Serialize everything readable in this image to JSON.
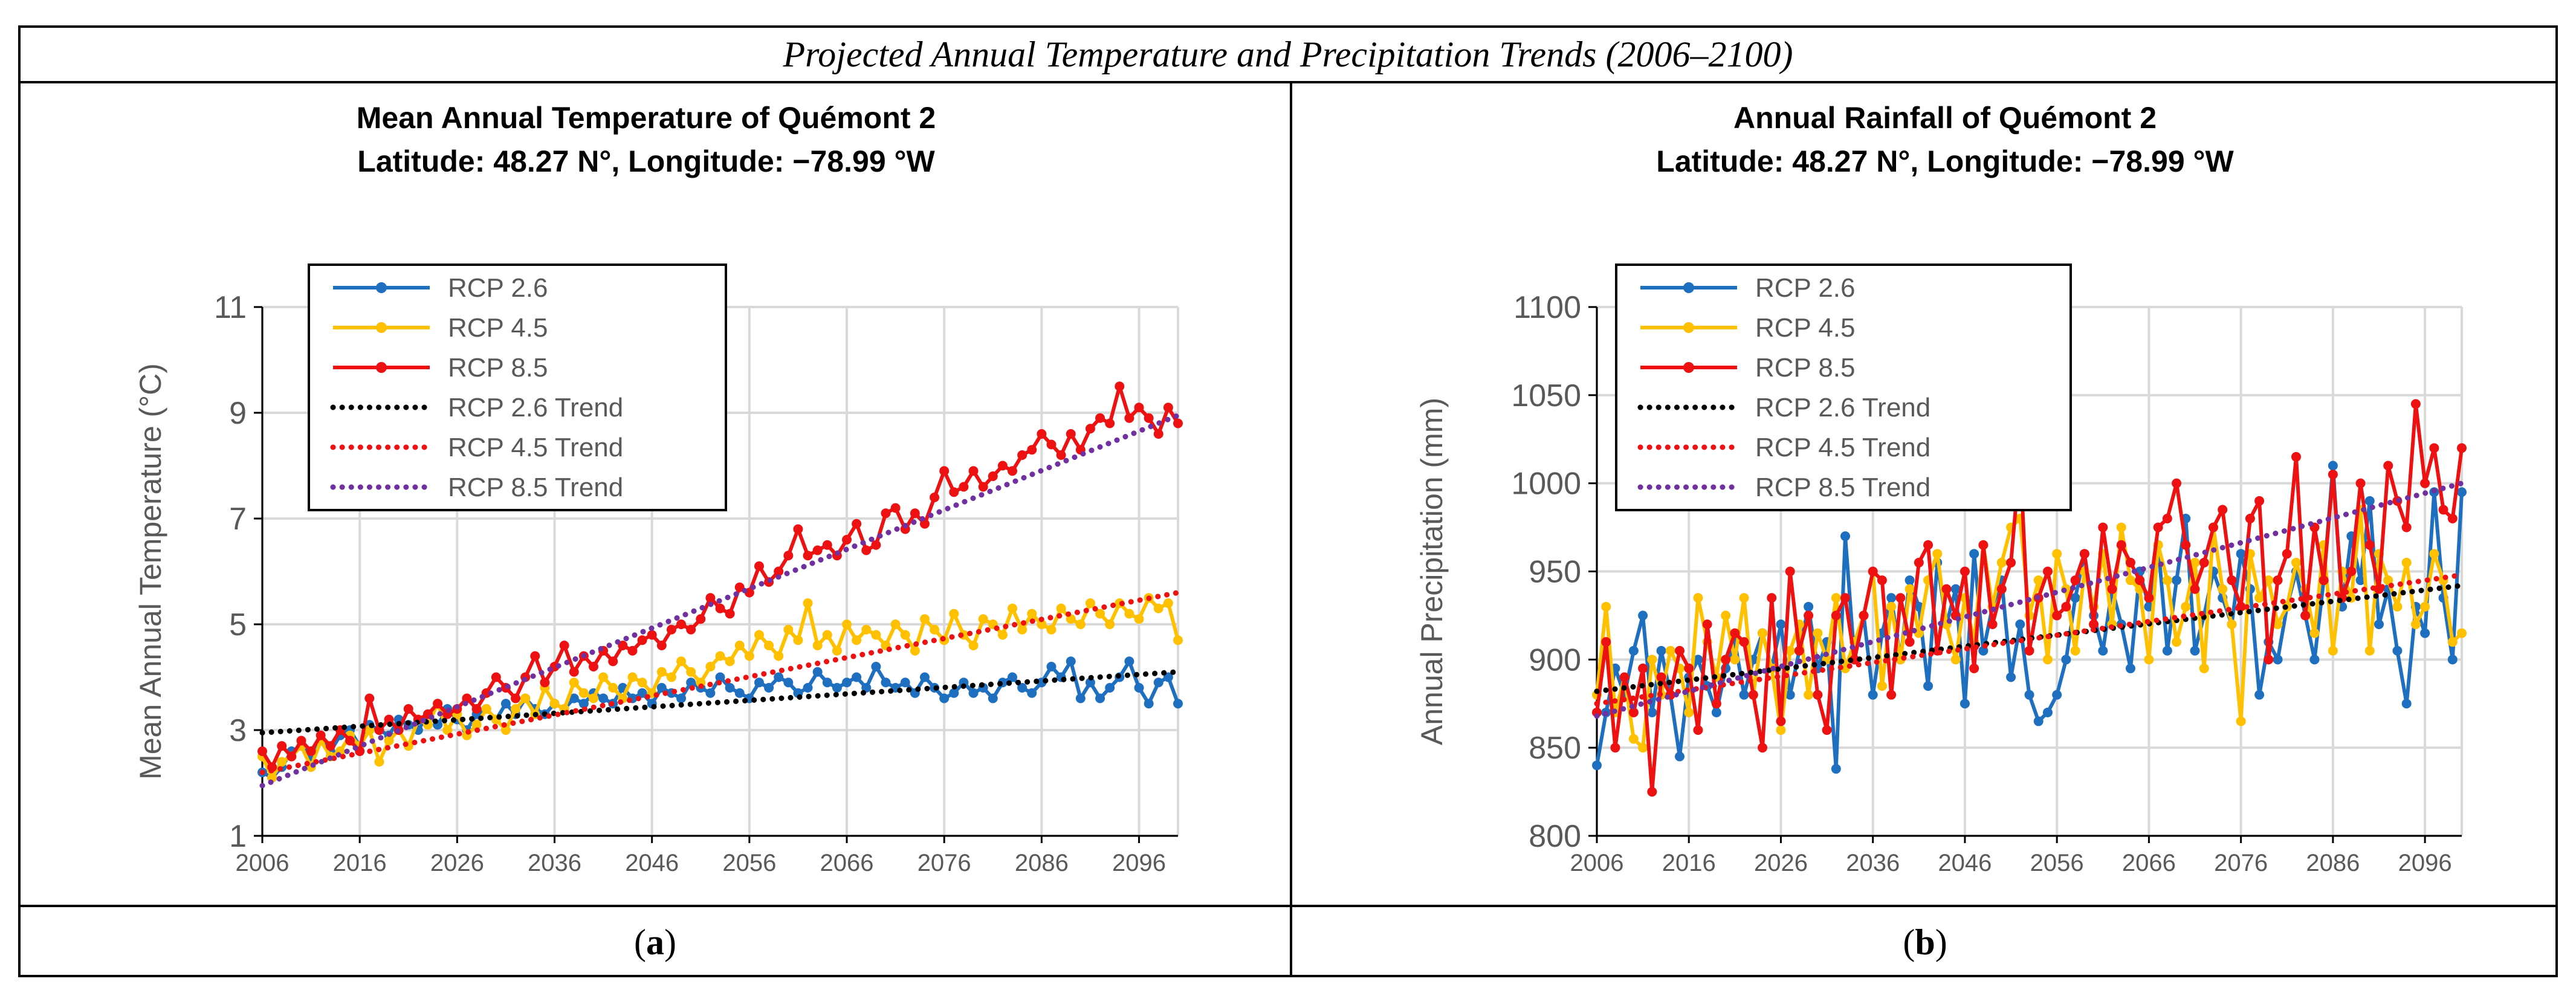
{
  "figure_title": "Projected Annual Temperature and Precipitation Trends (2006–2100)",
  "captions": [
    {
      "open": "(",
      "letter": "a",
      "close": ")"
    },
    {
      "open": "(",
      "letter": "b",
      "close": ")"
    }
  ],
  "colors": {
    "rcp26": "#1f6fc0",
    "rcp45": "#ffc000",
    "rcp85": "#ee1111",
    "trend26": "#000000",
    "trend45": "#ee1111",
    "trend85": "#7030a0"
  },
  "chart_data": [
    {
      "type": "line",
      "title": "Mean Annual Temperature of Quémont 2",
      "subtitle": "Latitude: 48.27 N°, Longitude: −78.99 °W",
      "xlabel": "",
      "ylabel": "Mean Annual Temperature (°C)",
      "xlim": [
        2006,
        2100
      ],
      "ylim": [
        1,
        11
      ],
      "yticks": [
        "1",
        "3",
        "5",
        "7",
        "9",
        "11"
      ],
      "xticks": [
        "2006",
        "2016",
        "2026",
        "2036",
        "2046",
        "2056",
        "2066",
        "2076",
        "2086",
        "2096"
      ],
      "legend_position": "top-left",
      "series": [
        {
          "name": "RCP 2.6",
          "style": "markers",
          "start_year": 2006,
          "values": [
            2.2,
            2.1,
            2.3,
            2.6,
            2.7,
            2.5,
            2.8,
            2.6,
            2.9,
            3.0,
            2.7,
            3.1,
            3.0,
            2.9,
            3.2,
            3.1,
            3.0,
            3.3,
            3.1,
            3.4,
            3.2,
            3.0,
            3.3,
            3.4,
            3.2,
            3.5,
            3.3,
            3.6,
            3.4,
            3.3,
            3.5,
            3.4,
            3.6,
            3.5,
            3.7,
            3.6,
            3.5,
            3.8,
            3.6,
            3.7,
            3.5,
            3.8,
            3.7,
            3.6,
            3.9,
            3.8,
            3.7,
            4.0,
            3.8,
            3.7,
            3.6,
            3.9,
            3.8,
            4.0,
            3.9,
            3.7,
            3.8,
            4.1,
            3.9,
            3.8,
            3.9,
            4.0,
            3.8,
            4.2,
            3.9,
            3.8,
            3.9,
            3.7,
            4.0,
            3.8,
            3.6,
            3.7,
            3.9,
            3.7,
            3.8,
            3.6,
            3.9,
            4.0,
            3.8,
            3.7,
            3.9,
            4.2,
            4.0,
            4.3,
            3.6,
            3.9,
            3.6,
            3.8,
            4.0,
            4.3,
            3.8,
            3.5,
            3.9,
            4.0,
            3.5
          ]
        },
        {
          "name": "RCP 4.5",
          "style": "markers",
          "start_year": 2006,
          "values": [
            2.5,
            2.1,
            2.4,
            2.5,
            2.7,
            2.3,
            2.8,
            2.5,
            2.6,
            2.9,
            2.7,
            3.0,
            2.4,
            2.8,
            3.0,
            2.7,
            3.2,
            3.1,
            3.5,
            3.0,
            3.3,
            2.9,
            3.1,
            3.4,
            3.2,
            3.0,
            3.4,
            3.6,
            3.3,
            3.8,
            3.5,
            3.4,
            3.9,
            3.7,
            3.6,
            4.0,
            3.8,
            3.6,
            4.0,
            3.9,
            3.7,
            4.1,
            4.0,
            4.3,
            4.1,
            3.9,
            4.2,
            4.4,
            4.3,
            4.6,
            4.4,
            4.8,
            4.6,
            4.4,
            4.9,
            4.7,
            5.4,
            4.6,
            4.8,
            4.5,
            5.0,
            4.7,
            4.9,
            4.8,
            4.6,
            5.0,
            4.8,
            4.5,
            5.1,
            4.9,
            4.7,
            5.2,
            4.8,
            4.6,
            5.1,
            5.0,
            4.8,
            5.3,
            4.9,
            5.2,
            5.0,
            4.9,
            5.3,
            5.1,
            5.0,
            5.4,
            5.2,
            5.0,
            5.4,
            5.2,
            5.1,
            5.5,
            5.3,
            5.4,
            4.7
          ]
        },
        {
          "name": "RCP 8.5",
          "style": "markers",
          "start_year": 2006,
          "values": [
            2.6,
            2.3,
            2.7,
            2.5,
            2.8,
            2.6,
            2.9,
            2.7,
            3.0,
            2.8,
            2.6,
            3.6,
            3.0,
            3.2,
            3.0,
            3.4,
            3.2,
            3.3,
            3.5,
            3.3,
            3.4,
            3.6,
            3.4,
            3.7,
            4.0,
            3.8,
            3.6,
            4.0,
            4.4,
            3.9,
            4.2,
            4.6,
            4.1,
            4.4,
            4.2,
            4.5,
            4.3,
            4.6,
            4.5,
            4.7,
            4.8,
            4.6,
            4.9,
            5.0,
            4.9,
            5.1,
            5.5,
            5.3,
            5.2,
            5.7,
            5.6,
            6.1,
            5.8,
            6.0,
            6.3,
            6.8,
            6.3,
            6.4,
            6.5,
            6.3,
            6.6,
            6.9,
            6.4,
            6.5,
            7.1,
            7.2,
            6.8,
            7.1,
            6.9,
            7.4,
            7.9,
            7.5,
            7.6,
            7.9,
            7.6,
            7.8,
            8.0,
            7.9,
            8.2,
            8.3,
            8.6,
            8.4,
            8.2,
            8.6,
            8.3,
            8.7,
            8.9,
            8.8,
            9.5,
            8.9,
            9.1,
            8.9,
            8.6,
            9.1,
            8.8
          ]
        },
        {
          "name": "RCP 2.6 Trend",
          "style": "dotted",
          "x": [
            2006,
            2100
          ],
          "values": [
            2.95,
            4.1
          ]
        },
        {
          "name": "RCP 4.5 Trend",
          "style": "dotted",
          "x": [
            2006,
            2100
          ],
          "values": [
            2.2,
            5.6
          ]
        },
        {
          "name": "RCP 8.5 Trend",
          "style": "dotted",
          "x": [
            2006,
            2100
          ],
          "values": [
            1.95,
            8.95
          ]
        }
      ]
    },
    {
      "type": "line",
      "title": "Annual Rainfall of Quémont 2",
      "subtitle": "Latitude: 48.27 N°, Longitude: −78.99 °W",
      "xlabel": "",
      "ylabel": "Annual Precipitation (mm)",
      "xlim": [
        2006,
        2100
      ],
      "ylim": [
        800,
        1100
      ],
      "yticks": [
        "800",
        "850",
        "900",
        "950",
        "1000",
        "1050",
        "1100"
      ],
      "xticks": [
        "2006",
        "2016",
        "2026",
        "2036",
        "2046",
        "2056",
        "2066",
        "2076",
        "2086",
        "2096"
      ],
      "legend_position": "top-left",
      "series": [
        {
          "name": "RCP 2.6",
          "style": "markers",
          "start_year": 2006,
          "values": [
            840,
            870,
            895,
            880,
            905,
            925,
            870,
            905,
            880,
            845,
            890,
            900,
            885,
            870,
            895,
            910,
            880,
            900,
            915,
            895,
            920,
            880,
            905,
            930,
            895,
            910,
            838,
            970,
            900,
            925,
            880,
            915,
            935,
            900,
            945,
            930,
            885,
            955,
            920,
            940,
            875,
            960,
            905,
            930,
            945,
            890,
            920,
            880,
            865,
            870,
            880,
            900,
            935,
            960,
            925,
            905,
            940,
            920,
            895,
            950,
            930,
            965,
            905,
            945,
            980,
            905,
            925,
            950,
            935,
            920,
            960,
            940,
            880,
            910,
            900,
            930,
            950,
            925,
            900,
            945,
            1010,
            930,
            970,
            945,
            990,
            920,
            940,
            905,
            875,
            930,
            915,
            995,
            935,
            900,
            995
          ]
        },
        {
          "name": "RCP 4.5",
          "style": "markers",
          "start_year": 2006,
          "values": [
            880,
            930,
            870,
            890,
            855,
            850,
            900,
            880,
            905,
            895,
            870,
            935,
            910,
            890,
            925,
            900,
            935,
            880,
            915,
            895,
            860,
            905,
            920,
            880,
            915,
            900,
            935,
            895,
            910,
            925,
            950,
            885,
            930,
            900,
            940,
            915,
            945,
            960,
            920,
            900,
            935,
            910,
            965,
            930,
            955,
            975,
            980,
            925,
            945,
            900,
            960,
            940,
            905,
            950,
            930,
            960,
            920,
            975,
            945,
            940,
            900,
            965,
            945,
            910,
            930,
            955,
            895,
            975,
            940,
            920,
            865,
            960,
            935,
            945,
            920,
            930,
            955,
            940,
            915,
            965,
            905,
            950,
            935,
            985,
            905,
            960,
            945,
            930,
            955,
            920,
            930,
            960,
            945,
            910,
            915
          ]
        },
        {
          "name": "RCP 8.5",
          "style": "markers",
          "start_year": 2006,
          "values": [
            870,
            910,
            850,
            890,
            870,
            895,
            825,
            890,
            880,
            905,
            895,
            860,
            920,
            875,
            900,
            915,
            910,
            880,
            850,
            935,
            865,
            950,
            905,
            925,
            880,
            860,
            925,
            935,
            900,
            925,
            950,
            945,
            880,
            935,
            910,
            955,
            965,
            905,
            940,
            925,
            950,
            895,
            965,
            920,
            940,
            955,
            1015,
            905,
            935,
            950,
            925,
            930,
            945,
            960,
            920,
            975,
            940,
            965,
            955,
            945,
            935,
            975,
            980,
            1000,
            965,
            940,
            955,
            975,
            985,
            945,
            930,
            980,
            990,
            900,
            945,
            960,
            1015,
            925,
            975,
            945,
            1005,
            935,
            950,
            1000,
            965,
            940,
            1010,
            990,
            975,
            1045,
            1000,
            1020,
            985,
            980,
            1020
          ]
        },
        {
          "name": "RCP 2.6 Trend",
          "style": "dotted",
          "x": [
            2006,
            2100
          ],
          "values": [
            882,
            942
          ]
        },
        {
          "name": "RCP 4.5 Trend",
          "style": "dotted",
          "x": [
            2006,
            2100
          ],
          "values": [
            875,
            948
          ]
        },
        {
          "name": "RCP 8.5 Trend",
          "style": "dotted",
          "x": [
            2006,
            2100
          ],
          "values": [
            868,
            1000
          ]
        }
      ]
    }
  ]
}
